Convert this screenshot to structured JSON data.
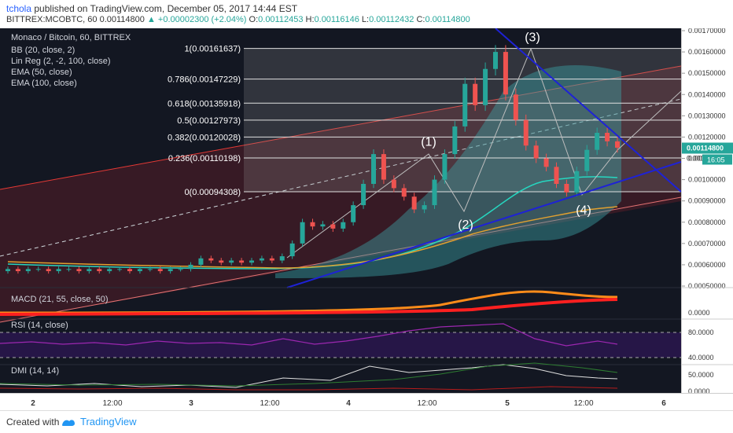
{
  "header": {
    "user": "tchola",
    "published": "published on TradingView.com, December 05, 2017 14:44 EST",
    "symbol": "BITTREX:MCOBTC, 60",
    "price": "0.00114800",
    "change": "▲ +0.00002300 (+2.04%)",
    "o_label": "O:",
    "o": "0.00112453",
    "h_label": "H:",
    "h": "0.00116146",
    "l_label": "L:",
    "l": "0.00112432",
    "c_label": "C:",
    "c": "0.00114800"
  },
  "legend": {
    "title": "Monaco / Bitcoin, 60, BITTREX",
    "bb": "BB (20, close, 2)",
    "linreg": "Lin Reg (2, -2, 100, close)",
    "ema50": "EMA (50, close)",
    "ema100": "EMA (100, close)",
    "macd": "MACD (21, 55, close, 50)",
    "rsi": "RSI (14, close)",
    "dmi": "DMI (14, 14)"
  },
  "chart_data": {
    "type": "line",
    "price_axis": {
      "ylim": [
        0.0005,
        0.0017
      ],
      "ticks": [
        "0.00170000",
        "0.00160000",
        "0.00150000",
        "0.00140000",
        "0.00130000",
        "0.00120000",
        "0.00110000",
        "0.00100000",
        "0.00090000",
        "0.00080000",
        "0.00070000",
        "0.00060000",
        "0.00050000"
      ],
      "tick_values": [
        0.0017,
        0.0016,
        0.0015,
        0.0014,
        0.0013,
        0.0012,
        0.0011,
        0.001,
        0.0009,
        0.0008,
        0.0007,
        0.0006,
        0.0005
      ],
      "last_price_label": "0.00114800",
      "countdown_label": "16:05",
      "hidden_label_partial": "0.001"
    },
    "time_axis": {
      "labels": [
        "2",
        "12:00",
        "3",
        "12:00",
        "4",
        "12:00",
        "5",
        "12:00",
        "6"
      ]
    },
    "fibonacci": [
      {
        "label": "1(0.00161637)",
        "value": 0.00161637
      },
      {
        "label": "0.786(0.00147229)",
        "value": 0.00147229
      },
      {
        "label": "0.618(0.00135918)",
        "value": 0.00135918
      },
      {
        "label": "0.5(0.00127973)",
        "value": 0.00127973
      },
      {
        "label": "0.382(0.00120028)",
        "value": 0.00120028
      },
      {
        "label": "0.236(0.00110198)",
        "value": 0.00110198
      },
      {
        "label": "0(0.00094308)",
        "value": 0.00094308
      }
    ],
    "waves": [
      {
        "label": "(1)",
        "value": 0.00113
      },
      {
        "label": "(2)",
        "value": 0.00085
      },
      {
        "label": "(3)",
        "value": 0.00162
      },
      {
        "label": "(4)",
        "value": 0.00092
      }
    ],
    "candles": [
      [
        0.00057,
        0.00058
      ],
      [
        0.00058,
        0.00057
      ],
      [
        0.00057,
        0.00058
      ],
      [
        0.00058,
        0.00058
      ],
      [
        0.00058,
        0.00057
      ],
      [
        0.00057,
        0.00058
      ],
      [
        0.00058,
        0.00058
      ],
      [
        0.00058,
        0.00057
      ],
      [
        0.00057,
        0.00058
      ],
      [
        0.00058,
        0.00057
      ],
      [
        0.00057,
        0.00058
      ],
      [
        0.00058,
        0.00058
      ],
      [
        0.00058,
        0.00057
      ],
      [
        0.00057,
        0.00058
      ],
      [
        0.00058,
        0.00058
      ],
      [
        0.00058,
        0.00057
      ],
      [
        0.00057,
        0.00058
      ],
      [
        0.00058,
        0.00058
      ],
      [
        0.00058,
        0.0006
      ],
      [
        0.0006,
        0.00063
      ],
      [
        0.00063,
        0.00062
      ],
      [
        0.00062,
        0.00061
      ],
      [
        0.00061,
        0.00062
      ],
      [
        0.00062,
        0.00061
      ],
      [
        0.00061,
        0.00062
      ],
      [
        0.00062,
        0.00063
      ],
      [
        0.00063,
        0.00062
      ],
      [
        0.00062,
        0.00064
      ],
      [
        0.00064,
        0.0007
      ],
      [
        0.0007,
        0.0008
      ],
      [
        0.0008,
        0.00078
      ],
      [
        0.00078,
        0.00079
      ],
      [
        0.00079,
        0.00077
      ],
      [
        0.00077,
        0.0008
      ],
      [
        0.0008,
        0.00088
      ],
      [
        0.00088,
        0.00098
      ],
      [
        0.00098,
        0.00112
      ],
      [
        0.00112,
        0.001
      ],
      [
        0.001,
        0.00096
      ],
      [
        0.00096,
        0.00092
      ],
      [
        0.00092,
        0.00086
      ],
      [
        0.00086,
        0.00088
      ],
      [
        0.00088,
        0.001
      ],
      [
        0.001,
        0.00112
      ],
      [
        0.00112,
        0.00125
      ],
      [
        0.00125,
        0.00145
      ],
      [
        0.00145,
        0.00135
      ],
      [
        0.00135,
        0.00152
      ],
      [
        0.00152,
        0.0016
      ],
      [
        0.0016,
        0.0014
      ],
      [
        0.0014,
        0.00128
      ],
      [
        0.00128,
        0.00116
      ],
      [
        0.00116,
        0.0011
      ],
      [
        0.0011,
        0.00106
      ],
      [
        0.00106,
        0.00098
      ],
      [
        0.00098,
        0.00094
      ],
      [
        0.00094,
        0.00104
      ],
      [
        0.00104,
        0.00114
      ],
      [
        0.00114,
        0.00122
      ],
      [
        0.00122,
        0.00118
      ],
      [
        0.00118,
        0.00115
      ]
    ],
    "macd_axis": {
      "ticks": [
        "0.0000"
      ]
    },
    "rsi_axis": {
      "ticks": [
        "80.0000",
        "40.0000"
      ]
    },
    "dmi_axis": {
      "ticks": [
        "50.0000",
        "0.0000"
      ]
    },
    "colors": {
      "background": "#131722",
      "up": "#26a69a",
      "down": "#ef5350",
      "trendline": "#1e22d6",
      "ema50": "#26d7c0",
      "ema100": "#e0a030",
      "rsi": "#9c27b0",
      "macd_line": "#ff2020",
      "macd_signal": "#ff8c1a"
    }
  },
  "footer": {
    "created": "Created with",
    "brand": "TradingView"
  }
}
